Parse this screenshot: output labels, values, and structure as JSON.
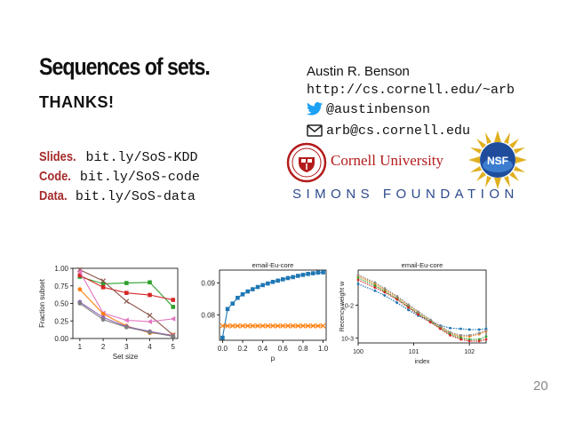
{
  "slide": {
    "title": "Sequences of sets.",
    "thanks": "THANKS!",
    "page_number": "20"
  },
  "links": [
    {
      "label": "Slides.",
      "url": "bit.ly/SoS-KDD"
    },
    {
      "label": "Code.",
      "url": "bit.ly/SoS-code"
    },
    {
      "label": "Data.",
      "url": "bit.ly/SoS-data"
    }
  ],
  "contact": {
    "name": "Austin R. Benson",
    "website": "http://cs.cornell.edu/~arb",
    "twitter": "@austinbenson",
    "email": "arb@cs.cornell.edu"
  },
  "logos": {
    "cornell": "Cornell University",
    "simons": "SIMONS FOUNDATION",
    "nsf": "NSF"
  },
  "colors": {
    "accent_label": "#a52a2a",
    "cornell_red": "#b31b1b",
    "simons_blue": "#2c4a8c",
    "twitter_blue": "#1da1f2"
  },
  "chart_data": [
    {
      "type": "line",
      "title": "",
      "xlabel": "Set size",
      "ylabel": "Fraction subset",
      "x": [
        1,
        2,
        3,
        4,
        5
      ],
      "xlim": [
        0.7,
        5.2
      ],
      "ylim": [
        0,
        1.0
      ],
      "xticks": [
        "1",
        "2",
        "3",
        "4",
        "5"
      ],
      "yticks": [
        "0.00",
        "0.25",
        "0.50",
        "0.75",
        "1.00"
      ],
      "series": [
        {
          "color": "#2ca02c",
          "marker": "square",
          "values": [
            0.88,
            0.78,
            0.79,
            0.8,
            0.45
          ]
        },
        {
          "color": "#d62728",
          "marker": "square",
          "values": [
            0.9,
            0.73,
            0.65,
            0.62,
            0.55
          ]
        },
        {
          "color": "#8c564b",
          "marker": "x",
          "values": [
            0.98,
            0.82,
            0.53,
            0.33,
            0.05
          ]
        },
        {
          "color": "#e377c2",
          "marker": "triangle-left",
          "values": [
            0.95,
            0.36,
            0.26,
            0.24,
            0.28
          ]
        },
        {
          "color": "#ff7f0e",
          "marker": "circle",
          "values": [
            0.7,
            0.35,
            0.18,
            0.08,
            0.05
          ]
        },
        {
          "color": "#9467bd",
          "marker": "circle",
          "values": [
            0.52,
            0.3,
            0.17,
            0.1,
            0.04
          ]
        },
        {
          "color": "#7f7f7f",
          "marker": "circle",
          "values": [
            0.5,
            0.27,
            0.16,
            0.09,
            0.03
          ]
        }
      ]
    },
    {
      "type": "line",
      "title": "email-Eu-core",
      "xlabel": "p",
      "ylabel": "",
      "x": [
        0.0,
        0.05,
        0.1,
        0.15,
        0.2,
        0.25,
        0.3,
        0.35,
        0.4,
        0.45,
        0.5,
        0.55,
        0.6,
        0.65,
        0.7,
        0.75,
        0.8,
        0.85,
        0.9,
        0.95,
        1.0
      ],
      "xlim": [
        -0.03,
        1.03
      ],
      "ylim": [
        0.072,
        0.094
      ],
      "xticks": [
        "0.0",
        "0.2",
        "0.4",
        "0.6",
        "0.8",
        "1.0"
      ],
      "yticks": [
        "0.08",
        "0.09"
      ],
      "series": [
        {
          "color": "#1f77b4",
          "marker": "square",
          "values": [
            0.0728,
            0.0818,
            0.0835,
            0.0853,
            0.0864,
            0.0873,
            0.088,
            0.0887,
            0.0893,
            0.0898,
            0.0903,
            0.0907,
            0.0911,
            0.0915,
            0.0918,
            0.0922,
            0.0925,
            0.0928,
            0.093,
            0.0932,
            0.0933
          ]
        },
        {
          "color": "#ff7f0e",
          "marker": "x",
          "values": [
            0.0765,
            0.0765,
            0.0765,
            0.0765,
            0.0765,
            0.0765,
            0.0765,
            0.0765,
            0.0765,
            0.0765,
            0.0765,
            0.0765,
            0.0765,
            0.0765,
            0.0765,
            0.0765,
            0.0765,
            0.0765,
            0.0765,
            0.0765,
            0.0765
          ]
        }
      ]
    },
    {
      "type": "line",
      "title": "email-Eu-core",
      "xlabel": "index",
      "ylabel": "Recency weight w",
      "x_scale": "log",
      "y_scale": "log",
      "xlim": [
        1,
        200
      ],
      "ylim": [
        0.0007,
        0.12
      ],
      "xticks": [
        "10^0",
        "10^1",
        "10^2"
      ],
      "yticks": [
        "10^-3",
        "10^-2"
      ],
      "x": [
        1,
        2,
        3,
        5,
        8,
        12,
        20,
        30,
        45,
        70,
        100,
        150,
        200
      ],
      "series": [
        {
          "color": "#1f77b4",
          "values": [
            0.045,
            0.028,
            0.02,
            0.012,
            0.0072,
            0.0048,
            0.0031,
            0.0024,
            0.002,
            0.0019,
            0.0018,
            0.0018,
            0.0019
          ]
        },
        {
          "color": "#ff7f0e",
          "values": [
            0.08,
            0.045,
            0.03,
            0.018,
            0.01,
            0.0062,
            0.0035,
            0.0022,
            0.0014,
            0.0011,
            0.0011,
            0.0013,
            0.0016
          ]
        },
        {
          "color": "#2ca02c",
          "values": [
            0.07,
            0.04,
            0.027,
            0.016,
            0.009,
            0.0055,
            0.0032,
            0.002,
            0.0013,
            0.001,
            0.0009,
            0.0009,
            0.0011
          ]
        },
        {
          "color": "#d62728",
          "values": [
            0.06,
            0.035,
            0.025,
            0.015,
            0.0085,
            0.0052,
            0.003,
            0.0019,
            0.0012,
            0.0009,
            0.0008,
            0.0008,
            0.0009
          ]
        },
        {
          "color": "#8c8c8c",
          "values": [
            0.085,
            0.05,
            0.033,
            0.019,
            0.0105,
            0.0064,
            0.0036,
            0.0023,
            0.0015,
            0.0012,
            0.0012,
            0.0014,
            0.0017
          ]
        }
      ]
    }
  ]
}
